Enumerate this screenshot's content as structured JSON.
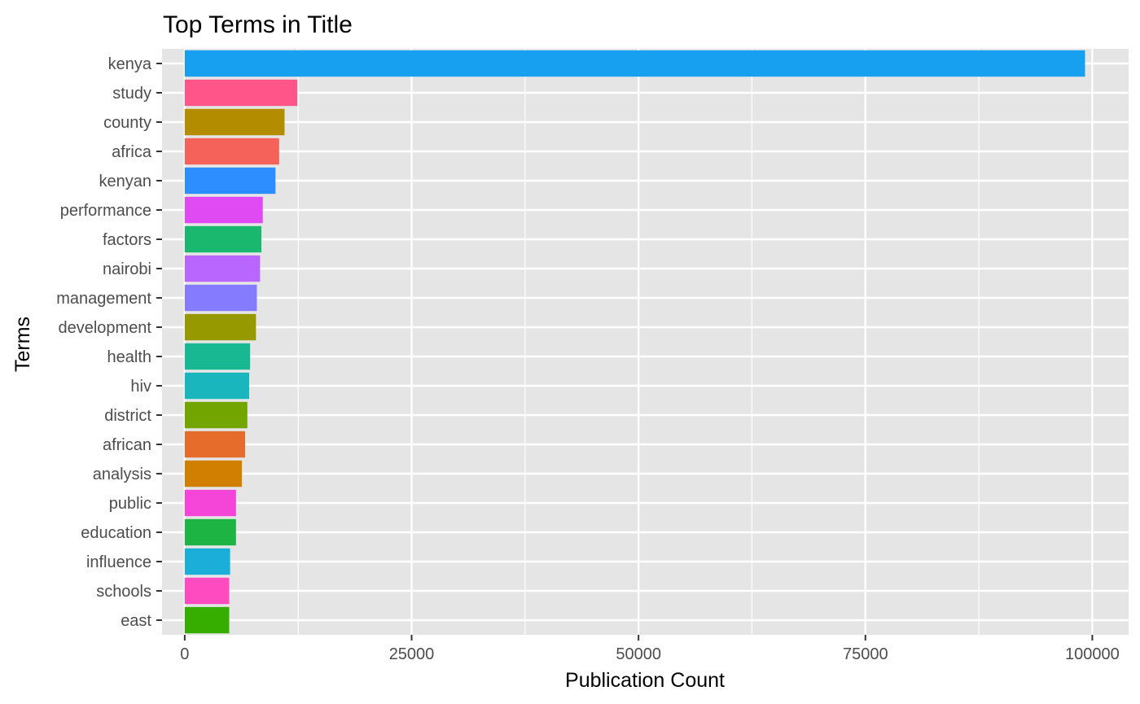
{
  "chart_data": {
    "type": "bar",
    "orientation": "horizontal",
    "title": "Top Terms in Title",
    "xlabel": "Publication Count",
    "ylabel": "Terms",
    "xlim": [
      -2500,
      104000
    ],
    "x_ticks": [
      0,
      25000,
      50000,
      75000,
      100000
    ],
    "x_tick_labels": [
      "0",
      "25000",
      "50000",
      "75000",
      "100000"
    ],
    "grid": true,
    "legend": "none",
    "background": "#E5E5E5",
    "categories": [
      "kenya",
      "study",
      "county",
      "africa",
      "kenyan",
      "performance",
      "factors",
      "nairobi",
      "management",
      "development",
      "health",
      "hiv",
      "district",
      "african",
      "analysis",
      "public",
      "education",
      "influence",
      "schools",
      "east"
    ],
    "values": [
      99200,
      12400,
      11000,
      10400,
      10000,
      8600,
      8450,
      8300,
      7950,
      7850,
      7200,
      7100,
      6900,
      6650,
      6300,
      5650,
      5650,
      5000,
      4900,
      4900
    ],
    "colors": [
      "#18A0F0",
      "#FF5588",
      "#B38C00",
      "#F4625A",
      "#2D8EFF",
      "#DF4AF2",
      "#19B86E",
      "#B966FF",
      "#857BFF",
      "#979900",
      "#18B992",
      "#19B6BD",
      "#72A500",
      "#E66C2C",
      "#D07F00",
      "#F545D9",
      "#1DB443",
      "#1AAED8",
      "#FF4AC0",
      "#36AE00"
    ]
  }
}
